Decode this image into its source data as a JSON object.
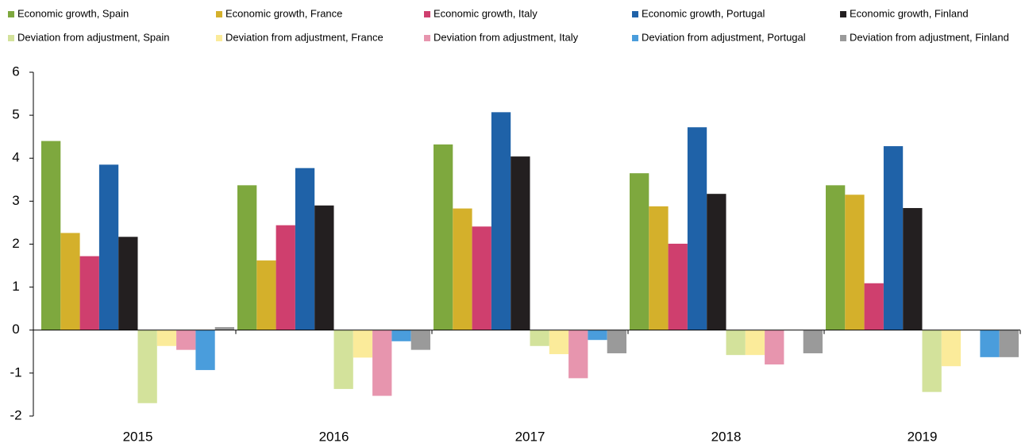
{
  "chart_data": {
    "type": "bar",
    "categories": [
      "2015",
      "2016",
      "2017",
      "2018",
      "2019"
    ],
    "series": [
      {
        "name": "Economic growth, Spain",
        "color": "#7ea83e",
        "values": [
          4.4,
          3.37,
          4.32,
          3.65,
          3.37
        ]
      },
      {
        "name": "Economic growth, France",
        "color": "#d4b02b",
        "values": [
          2.26,
          1.62,
          2.83,
          2.88,
          3.15
        ]
      },
      {
        "name": "Economic growth, Italy",
        "color": "#cf3f6e",
        "values": [
          1.72,
          2.44,
          2.41,
          2.01,
          1.09
        ]
      },
      {
        "name": "Economic growth, Portugal",
        "color": "#1f62a8",
        "values": [
          3.85,
          3.77,
          5.07,
          4.72,
          4.28
        ]
      },
      {
        "name": "Economic growth, Finland",
        "color": "#231f20",
        "values": [
          2.17,
          2.9,
          4.04,
          3.17,
          2.84
        ]
      },
      {
        "name": "Deviation from adjustment, Spain",
        "color": "#d3e29b",
        "values": [
          -1.7,
          -1.37,
          -0.37,
          -0.58,
          -1.44
        ]
      },
      {
        "name": "Deviation from adjustment, France",
        "color": "#fbeb9a",
        "values": [
          -0.37,
          -0.64,
          -0.56,
          -0.58,
          -0.84
        ]
      },
      {
        "name": "Deviation from adjustment, Italy",
        "color": "#e795ae",
        "values": [
          -0.46,
          -1.53,
          -1.12,
          -0.8,
          0
        ]
      },
      {
        "name": "Deviation from adjustment, Portugal",
        "color": "#4a9ddc",
        "values": [
          -0.93,
          -0.26,
          -0.23,
          0,
          -0.63
        ]
      },
      {
        "name": "Deviation from adjustment, Finland",
        "color": "#9a9a9a",
        "values": [
          0.07,
          -0.46,
          -0.54,
          -0.54,
          -0.63
        ]
      }
    ],
    "ylim": [
      -2,
      6
    ],
    "yticks": [
      -2,
      -1,
      0,
      1,
      2,
      3,
      4,
      5,
      6
    ]
  }
}
